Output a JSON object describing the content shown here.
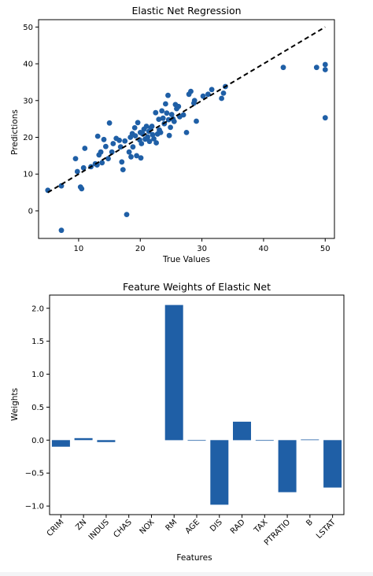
{
  "chart_data": [
    {
      "type": "scatter",
      "title": "Elastic Net Regression",
      "xlabel": "True Values",
      "ylabel": "Predictions",
      "xlim": [
        3.5,
        51.5
      ],
      "ylim": [
        -7.5,
        52
      ],
      "xticks": [
        10,
        20,
        30,
        40,
        50
      ],
      "yticks": [
        0,
        10,
        20,
        30,
        40,
        50
      ],
      "point_color": "#1f5fa6",
      "reference_line": {
        "style": "dashed",
        "color": "#000000",
        "from": [
          5,
          5
        ],
        "to": [
          50,
          50
        ]
      },
      "points": [
        [
          5.0,
          5.6
        ],
        [
          7.2,
          6.8
        ],
        [
          7.2,
          -5.3
        ],
        [
          9.5,
          14.2
        ],
        [
          9.8,
          10.7
        ],
        [
          10.3,
          6.5
        ],
        [
          10.5,
          6.0
        ],
        [
          10.8,
          11.7
        ],
        [
          11.0,
          17.0
        ],
        [
          12.0,
          12.0
        ],
        [
          12.7,
          12.8
        ],
        [
          13.0,
          12.5
        ],
        [
          13.1,
          20.3
        ],
        [
          13.3,
          15.2
        ],
        [
          13.6,
          16.0
        ],
        [
          13.8,
          13.1
        ],
        [
          14.1,
          19.4
        ],
        [
          14.4,
          17.5
        ],
        [
          14.8,
          14.2
        ],
        [
          15.0,
          23.9
        ],
        [
          15.4,
          16.0
        ],
        [
          15.6,
          18.3
        ],
        [
          16.1,
          19.7
        ],
        [
          16.6,
          19.2
        ],
        [
          16.8,
          17.4
        ],
        [
          17.0,
          13.3
        ],
        [
          17.2,
          11.2
        ],
        [
          17.5,
          19.0
        ],
        [
          17.8,
          -1.0
        ],
        [
          18.2,
          16.0
        ],
        [
          18.4,
          20.0
        ],
        [
          18.5,
          14.7
        ],
        [
          18.7,
          21.0
        ],
        [
          18.8,
          17.4
        ],
        [
          19.1,
          22.6
        ],
        [
          19.2,
          20.4
        ],
        [
          19.4,
          15.0
        ],
        [
          19.6,
          24.0
        ],
        [
          19.9,
          19.3
        ],
        [
          20.0,
          21.3
        ],
        [
          20.1,
          14.4
        ],
        [
          20.2,
          18.3
        ],
        [
          20.4,
          20.9
        ],
        [
          20.6,
          22.2
        ],
        [
          20.8,
          19.5
        ],
        [
          21.0,
          23.0
        ],
        [
          21.2,
          20.1
        ],
        [
          21.4,
          21.6
        ],
        [
          21.5,
          18.9
        ],
        [
          21.7,
          22.6
        ],
        [
          21.9,
          23.0
        ],
        [
          22.0,
          20.7
        ],
        [
          22.2,
          19.6
        ],
        [
          22.5,
          26.7
        ],
        [
          22.6,
          18.5
        ],
        [
          22.8,
          20.9
        ],
        [
          23.0,
          24.9
        ],
        [
          23.1,
          22.0
        ],
        [
          23.3,
          21.3
        ],
        [
          23.5,
          27.2
        ],
        [
          23.7,
          25.2
        ],
        [
          23.9,
          23.7
        ],
        [
          24.1,
          29.1
        ],
        [
          24.3,
          26.6
        ],
        [
          24.5,
          31.4
        ],
        [
          24.6,
          24.8
        ],
        [
          24.7,
          20.5
        ],
        [
          24.9,
          22.7
        ],
        [
          25.1,
          26.2
        ],
        [
          25.3,
          25.0
        ],
        [
          25.5,
          24.3
        ],
        [
          25.7,
          28.9
        ],
        [
          25.9,
          27.8
        ],
        [
          26.2,
          28.4
        ],
        [
          26.4,
          25.6
        ],
        [
          27.0,
          26.1
        ],
        [
          27.5,
          21.3
        ],
        [
          27.9,
          31.7
        ],
        [
          28.2,
          32.5
        ],
        [
          28.8,
          30.0
        ],
        [
          28.7,
          29.3
        ],
        [
          29.1,
          24.4
        ],
        [
          30.2,
          31.2
        ],
        [
          31.0,
          31.7
        ],
        [
          31.6,
          33.0
        ],
        [
          33.2,
          30.6
        ],
        [
          33.5,
          32.0
        ],
        [
          33.8,
          33.8
        ],
        [
          43.2,
          39.0
        ],
        [
          48.6,
          39.0
        ],
        [
          50.0,
          39.8
        ],
        [
          50.0,
          38.4
        ],
        [
          50.0,
          25.3
        ]
      ]
    },
    {
      "type": "bar",
      "title": "Feature Weights of Elastic Net",
      "xlabel": "Features",
      "ylabel": "Weights",
      "categories": [
        "CRIM",
        "ZN",
        "INDUS",
        "CHAS",
        "NOX",
        "RM",
        "AGE",
        "DIS",
        "RAD",
        "TAX",
        "PTRATIO",
        "B",
        "LSTAT"
      ],
      "values": [
        -0.1,
        0.03,
        -0.03,
        0.0,
        0.0,
        2.05,
        -0.01,
        -0.98,
        0.28,
        -0.01,
        -0.79,
        0.01,
        -0.72
      ],
      "ylim": [
        -1.13,
        2.2
      ],
      "yticks": [
        -1.0,
        -0.5,
        0.0,
        0.5,
        1.0,
        1.5,
        2.0
      ],
      "ytick_labels": [
        "−1.0",
        "−0.5",
        "0.0",
        "0.5",
        "1.0",
        "1.5",
        "2.0"
      ],
      "bar_color": "#1f5fa6"
    }
  ]
}
